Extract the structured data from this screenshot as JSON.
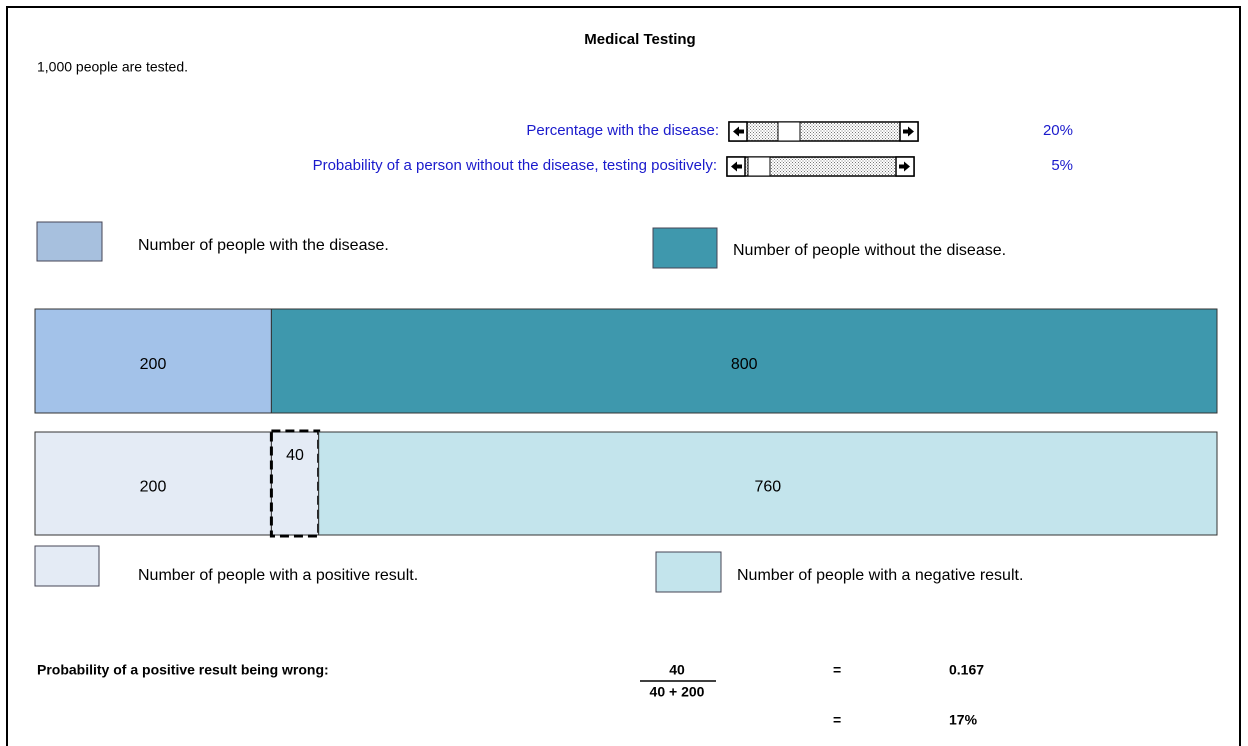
{
  "title": "Medical Testing",
  "intro": "1,000 people are tested.",
  "controls": [
    {
      "label": "Percentage with the disease:",
      "value_label": "20%"
    },
    {
      "label": "Probability of  a person without the disease, testing positively:",
      "value_label": "5%"
    }
  ],
  "legend_top": [
    {
      "label": "Number of people with the disease.",
      "color": "#a7c0de"
    },
    {
      "label": "Number of people without the disease.",
      "color": "#3f98ad"
    }
  ],
  "bar_top": {
    "segments": [
      {
        "value": 200,
        "color": "#a3c2e9"
      },
      {
        "value": 800,
        "color": "#3e98ad"
      }
    ]
  },
  "bar_bottom": {
    "segments": [
      {
        "value": 200,
        "color": "#e4ebf5"
      },
      {
        "value": 40,
        "color": "#e4ebf5"
      },
      {
        "value": 760,
        "color": "#c3e4ec"
      }
    ]
  },
  "legend_bottom": [
    {
      "label": "Number of people with a positive result.",
      "color": "#e4ebf5"
    },
    {
      "label": "Number of people with a negative result.",
      "color": "#c3e4ec"
    }
  ],
  "result": {
    "label": "Probability of a positive result being wrong:",
    "numerator": "40",
    "denominator": "40 + 200",
    "equals_1": "=",
    "decimal": "0.167",
    "equals_2": "=",
    "percent": "17%"
  }
}
